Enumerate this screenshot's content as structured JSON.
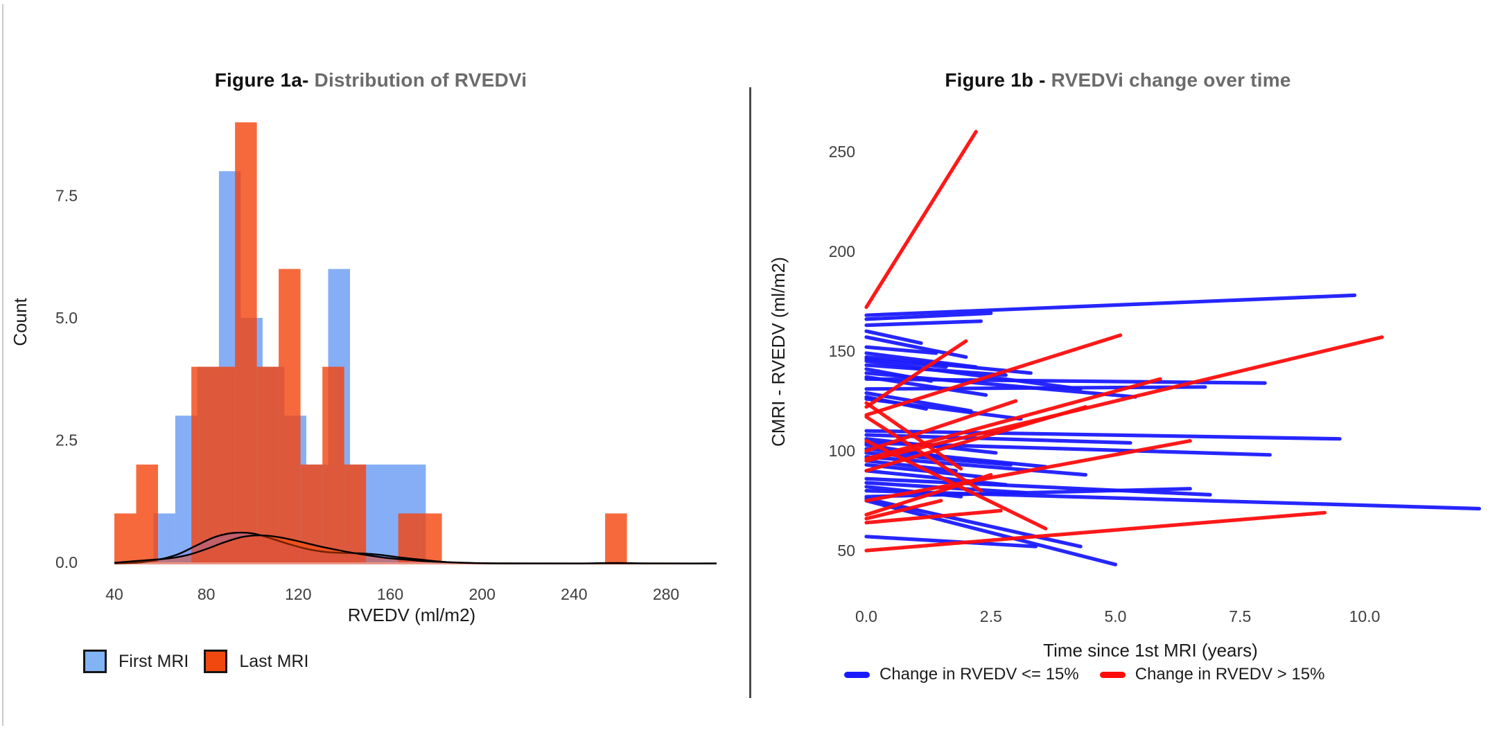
{
  "page": {
    "background": "#ffffff"
  },
  "colors": {
    "hist_blue_fill": "rgba(59,125,241,0.62)",
    "hist_orange_fill": "rgba(244,67,13,0.80)",
    "legend_blue_key": "#82b3f4",
    "legend_orange_key": "#f1480f",
    "kde_blue_fill": "rgba(125,110,215,0.30)",
    "kde_orange_fill": "rgba(255,72,0,0.45)",
    "kde_stroke": "#000000",
    "line_blue": "#1a1aff",
    "line_red": "#fd0d0d",
    "tick_text": "#3d3d3d",
    "axis_text": "#1a1a1a",
    "title_gray": "#6b6b6b"
  },
  "panels": {
    "fig1a": {
      "title_prefix": "Figure 1a-",
      "title_rest": " Distribution of RVEDVi",
      "x_label": "RVEDV (ml/m2)",
      "y_label": "Count",
      "x_ticks": [
        "40",
        "80",
        "120",
        "160",
        "200",
        "240",
        "280"
      ],
      "y_ticks": [
        "0.0",
        "2.5",
        "5.0",
        "7.5"
      ],
      "legend": [
        {
          "label": "First MRI",
          "key": "blue-square"
        },
        {
          "label": "Last MRI",
          "key": "orange-square"
        }
      ]
    },
    "fig1b": {
      "title_prefix": "Figure 1b -",
      "title_rest": " RVEDVi change over time",
      "x_label": "Time since 1st MRI (years)",
      "y_label": "CMRI - RVEDV (ml/m2)",
      "x_ticks": [
        "0.0",
        "2.5",
        "5.0",
        "7.5",
        "10.0"
      ],
      "y_ticks": [
        "50",
        "100",
        "150",
        "200",
        "250"
      ],
      "legend": [
        {
          "label": "Change in RVEDV <= 15%",
          "key": "blue-dash"
        },
        {
          "label": "Change in RVEDV > 15%",
          "key": "red-dash"
        }
      ]
    }
  },
  "chart_data": [
    {
      "type": "bar",
      "subtype": "overlaid-histogram-with-density",
      "title": "Figure 1a- Distribution of RVEDVi",
      "xlabel": "RVEDV (ml/m2)",
      "ylabel": "Count",
      "xlim": [
        33,
        303
      ],
      "ylim": [
        0,
        9.4
      ],
      "x_tick_values": [
        40,
        80,
        120,
        160,
        200,
        240,
        280
      ],
      "y_tick_values": [
        0,
        2.5,
        5,
        7.5
      ],
      "legend_position": "bottom-left",
      "grid": false,
      "series": [
        {
          "name": "First MRI",
          "bars": [
            [
              57,
              66.5,
              1
            ],
            [
              66.5,
              76,
              3
            ],
            [
              76,
              85.5,
              4
            ],
            [
              85.5,
              95,
              8
            ],
            [
              95,
              104.5,
              5
            ],
            [
              104.5,
              114,
              4
            ],
            [
              114,
              123.5,
              3
            ],
            [
              123.5,
              133,
              2
            ],
            [
              133,
              142.5,
              6
            ],
            [
              142.5,
              152,
              2
            ],
            [
              152,
              161.5,
              2
            ],
            [
              161.5,
              175.5,
              2
            ]
          ]
        },
        {
          "name": "Last MRI",
          "bars": [
            [
              40,
              49.5,
              1
            ],
            [
              49.5,
              59,
              2
            ],
            [
              73.5,
              83,
              4
            ],
            [
              83,
              92.5,
              4
            ],
            [
              92.5,
              102,
              9
            ],
            [
              102,
              111.5,
              4
            ],
            [
              111.5,
              121,
              6
            ],
            [
              121,
              130.5,
              2
            ],
            [
              130.5,
              140,
              4
            ],
            [
              140,
              149.5,
              2
            ],
            [
              163.5,
              173,
              1
            ],
            [
              173,
              182.5,
              1
            ],
            [
              253.5,
              263,
              1
            ]
          ]
        }
      ],
      "density": [
        {
          "name": "First MRI",
          "points": [
            [
              40,
              0.005
            ],
            [
              44,
              0.01
            ],
            [
              52,
              0.03
            ],
            [
              60,
              0.09
            ],
            [
              68,
              0.2
            ],
            [
              76,
              0.38
            ],
            [
              84,
              0.55
            ],
            [
              92,
              0.63
            ],
            [
              100,
              0.62
            ],
            [
              108,
              0.52
            ],
            [
              116,
              0.4
            ],
            [
              124,
              0.3
            ],
            [
              132,
              0.24
            ],
            [
              140,
              0.22
            ],
            [
              148,
              0.21
            ],
            [
              156,
              0.18
            ],
            [
              164,
              0.13
            ],
            [
              172,
              0.09
            ],
            [
              180,
              0.05
            ],
            [
              190,
              0.02
            ],
            [
              200,
              0.01
            ],
            [
              215,
              0.005
            ],
            [
              302,
              0.005
            ]
          ]
        },
        {
          "name": "Last MRI",
          "points": [
            [
              40,
              0.02
            ],
            [
              48,
              0.05
            ],
            [
              56,
              0.08
            ],
            [
              64,
              0.11
            ],
            [
              72,
              0.18
            ],
            [
              80,
              0.3
            ],
            [
              88,
              0.44
            ],
            [
              96,
              0.55
            ],
            [
              104,
              0.58
            ],
            [
              112,
              0.54
            ],
            [
              120,
              0.46
            ],
            [
              128,
              0.37
            ],
            [
              136,
              0.29
            ],
            [
              144,
              0.22
            ],
            [
              152,
              0.16
            ],
            [
              160,
              0.11
            ],
            [
              168,
              0.08
            ],
            [
              176,
              0.05
            ],
            [
              186,
              0.03
            ],
            [
              196,
              0.015
            ],
            [
              210,
              0.007
            ],
            [
              240,
              0.006
            ],
            [
              252,
              0.013
            ],
            [
              260,
              0.015
            ],
            [
              270,
              0.008
            ],
            [
              285,
              0.005
            ],
            [
              302,
              0.005
            ]
          ]
        }
      ]
    },
    {
      "type": "line",
      "subtype": "paired-trajectories",
      "title": "Figure 1b - RVEDVi change over time",
      "xlabel": "Time since 1st MRI (years)",
      "ylabel": "CMRI - RVEDV (ml/m2)",
      "xlim": [
        0,
        12.4
      ],
      "ylim": [
        35,
        268
      ],
      "x_tick_values": [
        0,
        2.5,
        5,
        7.5,
        10
      ],
      "y_tick_values": [
        50,
        100,
        150,
        200,
        250
      ],
      "legend_position": "bottom",
      "grid": false,
      "series": [
        {
          "name": "Change in RVEDV <= 15%",
          "color_key": "line_blue",
          "lines": [
            [
              9.8,
              168,
              178
            ],
            [
              2.5,
              166,
              169
            ],
            [
              2.3,
              163,
              165
            ],
            [
              1.1,
              160,
              154
            ],
            [
              2.0,
              157,
              147
            ],
            [
              1.4,
              152,
              149
            ],
            [
              2.2,
              149,
              142
            ],
            [
              3.3,
              147,
              139
            ],
            [
              1.6,
              146,
              142
            ],
            [
              4.3,
              145,
              131
            ],
            [
              2.8,
              143,
              138
            ],
            [
              1.3,
              141,
              135
            ],
            [
              5.4,
              139,
              127
            ],
            [
              2.4,
              137,
              128
            ],
            [
              8.0,
              136,
              134
            ],
            [
              6.8,
              131,
              132
            ],
            [
              2.1,
              129,
              120
            ],
            [
              1.2,
              127,
              121
            ],
            [
              3.1,
              126,
              116
            ],
            [
              9.5,
              110,
              106
            ],
            [
              5.3,
              108,
              104
            ],
            [
              2.6,
              106,
              99
            ],
            [
              8.1,
              104,
              98
            ],
            [
              1.5,
              103,
              97
            ],
            [
              3.6,
              101,
              92
            ],
            [
              2.9,
              99,
              93
            ],
            [
              4.4,
              97,
              88
            ],
            [
              1.8,
              95,
              90
            ],
            [
              2.3,
              93,
              87
            ],
            [
              6.9,
              86,
              78
            ],
            [
              3.2,
              84,
              79
            ],
            [
              1.9,
              82,
              77
            ],
            [
              12.3,
              80,
              71
            ],
            [
              2.8,
              90,
              83
            ],
            [
              6.5,
              77,
              81
            ],
            [
              3.4,
              57,
              52
            ],
            [
              5.0,
              75,
              43
            ],
            [
              4.3,
              76,
              52
            ]
          ]
        },
        {
          "name": "Change in RVEDV > 15%",
          "color_key": "line_red",
          "lines": [
            [
              2.2,
              172,
              260
            ],
            [
              10.35,
              95,
              157
            ],
            [
              5.1,
              118,
              158
            ],
            [
              5.9,
              96,
              136
            ],
            [
              4.4,
              90,
              122
            ],
            [
              6.5,
              75,
              105
            ],
            [
              2.0,
              122,
              155
            ],
            [
              3.0,
              100,
              125
            ],
            [
              2.3,
              117,
              80
            ],
            [
              3.6,
              105,
              61
            ],
            [
              1.9,
              124,
              91
            ],
            [
              9.2,
              50,
              69
            ],
            [
              2.5,
              68,
              88
            ],
            [
              1.5,
              66,
              75
            ],
            [
              2.7,
              64,
              70
            ]
          ]
        }
      ]
    }
  ]
}
